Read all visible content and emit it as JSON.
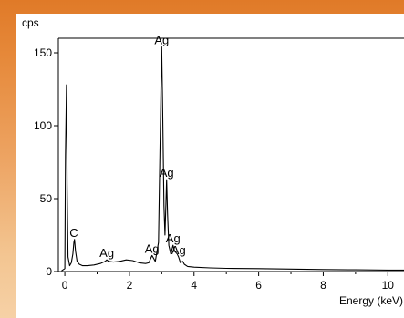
{
  "chart_data": {
    "type": "line",
    "title": "",
    "xlabel": "Energy (keV)",
    "ylabel": "cps",
    "xlim": [
      -0.2,
      10.5
    ],
    "ylim": [
      0,
      160
    ],
    "x_ticks": [
      0,
      2,
      4,
      6,
      8,
      10
    ],
    "x_tick_labels": [
      "0",
      "2",
      "4",
      "6",
      "8",
      "10"
    ],
    "y_ticks": [
      0,
      50,
      100,
      150
    ],
    "y_tick_labels": [
      "0",
      "50",
      "100",
      "150"
    ],
    "grid": false,
    "series": [
      {
        "color": "#000000",
        "points": [
          [
            -0.1,
            0.5
          ],
          [
            0.0,
            2
          ],
          [
            0.02,
            80
          ],
          [
            0.05,
            128
          ],
          [
            0.07,
            60
          ],
          [
            0.1,
            10
          ],
          [
            0.15,
            4
          ],
          [
            0.2,
            6
          ],
          [
            0.25,
            12
          ],
          [
            0.28,
            20
          ],
          [
            0.3,
            22
          ],
          [
            0.33,
            14
          ],
          [
            0.38,
            7
          ],
          [
            0.45,
            5
          ],
          [
            0.55,
            4
          ],
          [
            0.7,
            4
          ],
          [
            0.9,
            4.5
          ],
          [
            1.1,
            5.5
          ],
          [
            1.25,
            7
          ],
          [
            1.3,
            8
          ],
          [
            1.35,
            7
          ],
          [
            1.5,
            6.5
          ],
          [
            1.7,
            7
          ],
          [
            1.9,
            8
          ],
          [
            2.1,
            7.5
          ],
          [
            2.3,
            6
          ],
          [
            2.5,
            5.5
          ],
          [
            2.6,
            6
          ],
          [
            2.7,
            11
          ],
          [
            2.8,
            7
          ],
          [
            2.9,
            20
          ],
          [
            2.95,
            90
          ],
          [
            2.98,
            130
          ],
          [
            3.0,
            154
          ],
          [
            3.03,
            110
          ],
          [
            3.07,
            45
          ],
          [
            3.1,
            25
          ],
          [
            3.13,
            48
          ],
          [
            3.15,
            63
          ],
          [
            3.18,
            40
          ],
          [
            3.22,
            18
          ],
          [
            3.28,
            12
          ],
          [
            3.35,
            18
          ],
          [
            3.4,
            14
          ],
          [
            3.48,
            12
          ],
          [
            3.52,
            10
          ],
          [
            3.58,
            6
          ],
          [
            3.65,
            7
          ],
          [
            3.7,
            5
          ],
          [
            3.8,
            3.5
          ],
          [
            4.0,
            3
          ],
          [
            4.5,
            2.5
          ],
          [
            5.0,
            2.2
          ],
          [
            6.0,
            2
          ],
          [
            7.0,
            1.7
          ],
          [
            8.0,
            1.4
          ],
          [
            9.0,
            1.2
          ],
          [
            10.0,
            1
          ],
          [
            10.5,
            1
          ]
        ]
      }
    ],
    "annotations": [
      {
        "text": "C",
        "x": 0.28,
        "y": 22
      },
      {
        "text": "Ag",
        "x": 1.3,
        "y": 8
      },
      {
        "text": "Ag",
        "x": 2.7,
        "y": 11
      },
      {
        "text": "Ag",
        "x": 3.0,
        "y": 154
      },
      {
        "text": "Ag",
        "x": 3.15,
        "y": 63
      },
      {
        "text": "Ag",
        "x": 3.35,
        "y": 18
      },
      {
        "text": "Ag",
        "x": 3.52,
        "y": 10
      }
    ]
  }
}
